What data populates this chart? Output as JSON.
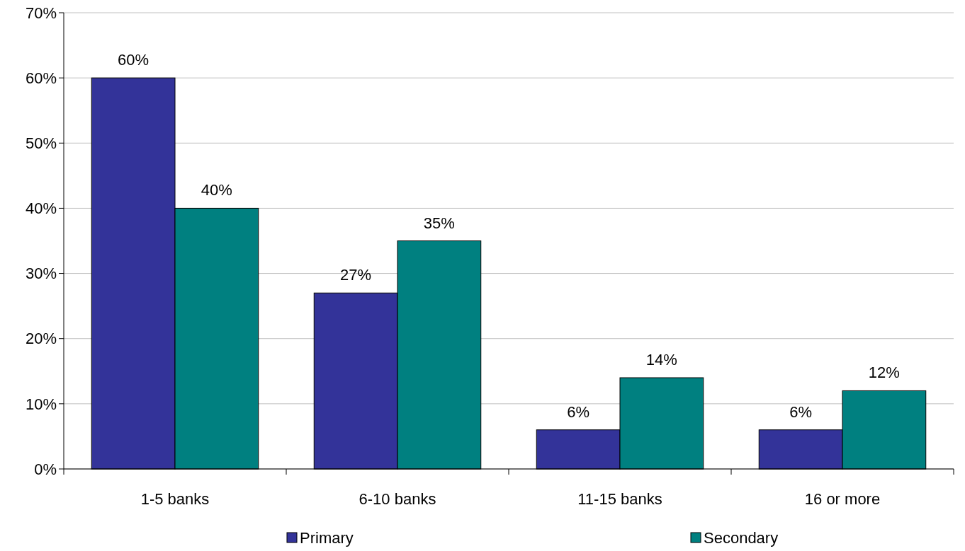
{
  "chart_data": {
    "type": "bar",
    "categories": [
      "1-5 banks",
      "6-10 banks",
      "11-15 banks",
      "16 or more"
    ],
    "series": [
      {
        "name": "Primary",
        "color": "#333399",
        "values": [
          60,
          27,
          6,
          6
        ],
        "value_labels": [
          "60%",
          "27%",
          "6%",
          "6%"
        ]
      },
      {
        "name": "Secondary",
        "color": "#008080",
        "values": [
          40,
          35,
          14,
          12
        ],
        "value_labels": [
          "40%",
          "35%",
          "14%",
          "12%"
        ]
      }
    ],
    "ylim": [
      0,
      70
    ],
    "yticks": [
      {
        "value": 0,
        "label": "0%"
      },
      {
        "value": 10,
        "label": "10%"
      },
      {
        "value": 20,
        "label": "20%"
      },
      {
        "value": 30,
        "label": "30%"
      },
      {
        "value": 40,
        "label": "40%"
      },
      {
        "value": 50,
        "label": "50%"
      },
      {
        "value": 60,
        "label": "60%"
      },
      {
        "value": 70,
        "label": "70%"
      }
    ],
    "grid": "y",
    "legend": "bottom"
  }
}
